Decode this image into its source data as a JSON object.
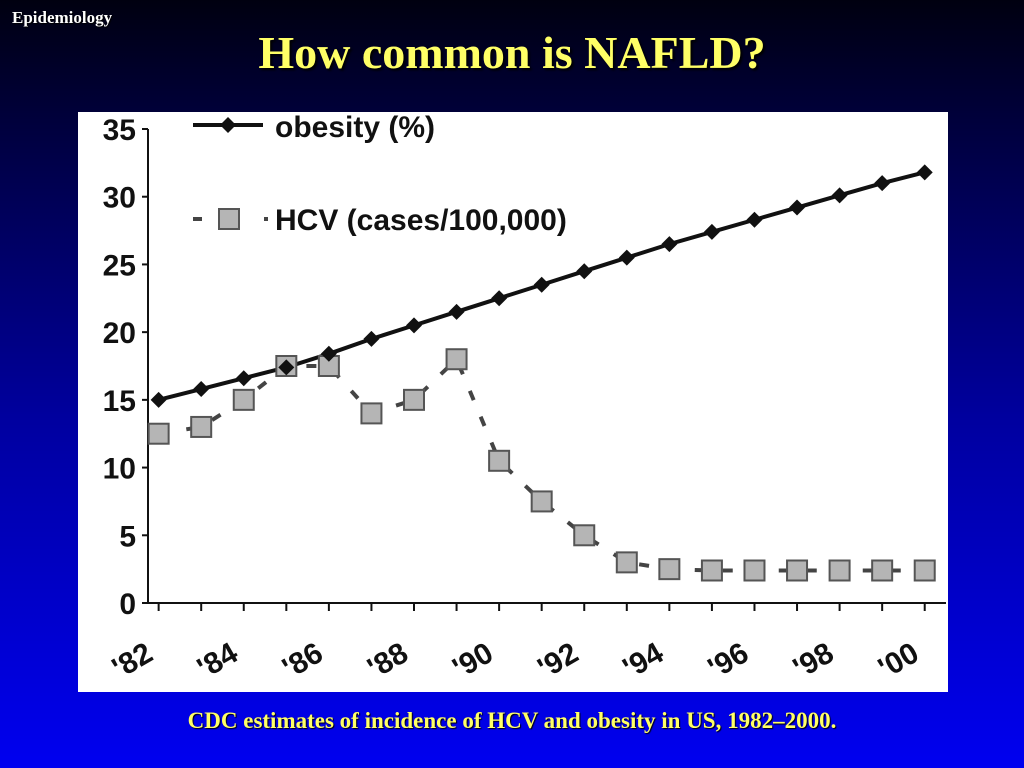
{
  "header": {
    "section_tag": "Epidemiology",
    "title": "How common is NAFLD?"
  },
  "caption": "CDC estimates of incidence of HCV and obesity in US, 1982–2000.",
  "colors": {
    "title": "#ffff66",
    "obesity_series": "#111111",
    "hcv_series_fill": "#b5b5b5",
    "hcv_series_stroke": "#555555"
  },
  "chart_data": {
    "type": "line",
    "x": [
      1982.5,
      1983.5,
      1984.5,
      1985.5,
      1986.5,
      1987.5,
      1988.5,
      1989.5,
      1990.5,
      1991.5,
      1992.5,
      1993.5,
      1994.5,
      1995.5,
      1996.5,
      1997.5,
      1998.5,
      1999.5,
      2000.5
    ],
    "x_tick_values": [
      1982,
      1984,
      1986,
      1988,
      1990,
      1992,
      1994,
      1996,
      1998,
      2000
    ],
    "x_tick_labels": [
      "'82",
      "'84",
      "'86",
      "'88",
      "'90",
      "'92",
      "'94",
      "'96",
      "'98",
      "'00"
    ],
    "xlim": [
      1982.25,
      2001
    ],
    "ylim": [
      0,
      35
    ],
    "y_ticks": [
      0,
      5,
      10,
      15,
      20,
      25,
      30,
      35
    ],
    "grid": false,
    "legend_position": "top-left",
    "series": [
      {
        "name": "obesity (%)",
        "marker": "diamond",
        "line": "solid",
        "values": [
          15,
          15.8,
          16.6,
          17.4,
          18.4,
          19.5,
          20.5,
          21.5,
          22.5,
          23.5,
          24.5,
          25.5,
          26.5,
          27.4,
          28.3,
          29.2,
          30.1,
          31,
          31.8
        ]
      },
      {
        "name": "HCV (cases/100,000)",
        "marker": "square",
        "line": "dashed",
        "values": [
          12.5,
          13,
          15,
          17.5,
          17.5,
          14,
          15,
          18,
          10.5,
          7.5,
          5,
          3,
          2.5,
          2.4,
          2.4,
          2.4,
          2.4,
          2.4,
          2.4
        ]
      }
    ]
  }
}
